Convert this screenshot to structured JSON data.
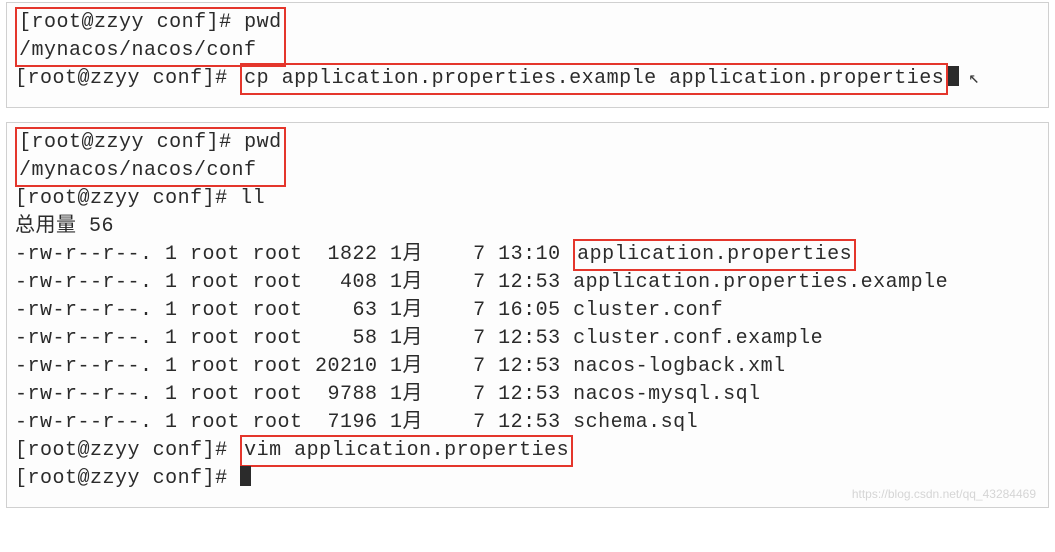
{
  "block1": {
    "prompt_user": "root@zzyy",
    "prompt_dir": "conf",
    "cmd_pwd": "pwd",
    "pwd_output": "/mynacos/nacos/conf",
    "cmd_cp": "cp application.properties.example application.properties"
  },
  "block2": {
    "prompt_user": "root@zzyy",
    "prompt_dir": "conf",
    "cmd_pwd": "pwd",
    "pwd_output": "/mynacos/nacos/conf",
    "cmd_ll": "ll",
    "total_label": "总用量 56",
    "rows": [
      {
        "perm": "-rw-r--r--.",
        "n": "1",
        "owner": "root",
        "group": "root",
        "size": " 1822",
        "month": "1月",
        "day": " 7",
        "time": "13:10",
        "name": "application.properties",
        "hl": true
      },
      {
        "perm": "-rw-r--r--.",
        "n": "1",
        "owner": "root",
        "group": "root",
        "size": "  408",
        "month": "1月",
        "day": " 7",
        "time": "12:53",
        "name": "application.properties.example",
        "hl": false
      },
      {
        "perm": "-rw-r--r--.",
        "n": "1",
        "owner": "root",
        "group": "root",
        "size": "   63",
        "month": "1月",
        "day": " 7",
        "time": "16:05",
        "name": "cluster.conf",
        "hl": false
      },
      {
        "perm": "-rw-r--r--.",
        "n": "1",
        "owner": "root",
        "group": "root",
        "size": "   58",
        "month": "1月",
        "day": " 7",
        "time": "12:53",
        "name": "cluster.conf.example",
        "hl": false
      },
      {
        "perm": "-rw-r--r--.",
        "n": "1",
        "owner": "root",
        "group": "root",
        "size": "20210",
        "month": "1月",
        "day": " 7",
        "time": "12:53",
        "name": "nacos-logback.xml",
        "hl": false
      },
      {
        "perm": "-rw-r--r--.",
        "n": "1",
        "owner": "root",
        "group": "root",
        "size": " 9788",
        "month": "1月",
        "day": " 7",
        "time": "12:53",
        "name": "nacos-mysql.sql",
        "hl": false
      },
      {
        "perm": "-rw-r--r--.",
        "n": "1",
        "owner": "root",
        "group": "root",
        "size": " 7196",
        "month": "1月",
        "day": " 7",
        "time": "12:53",
        "name": "schema.sql",
        "hl": false
      }
    ],
    "cmd_vim": "vim application.properties",
    "watermark": "https://blog.csdn.net/qq_43284469"
  },
  "colors": {
    "highlight_border": "#e4362c",
    "text": "#2b2b2b",
    "panel_border": "#d0d0d0",
    "background": "#fdfdfd"
  }
}
